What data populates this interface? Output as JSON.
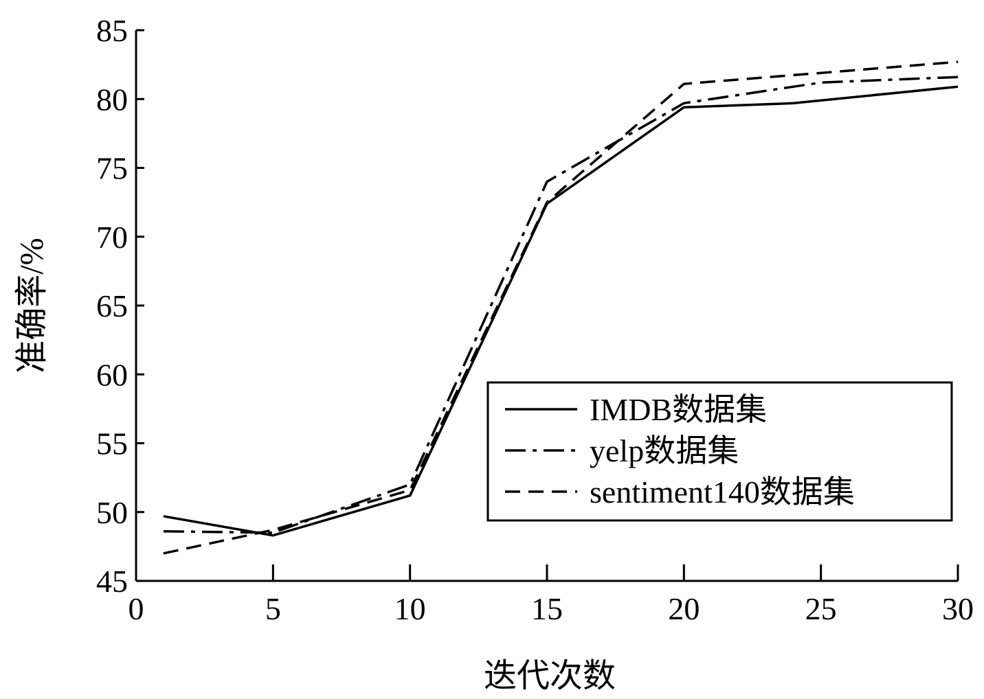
{
  "chart_data": {
    "type": "line",
    "title": "",
    "xlabel": "迭代次数",
    "ylabel": "准确率/%",
    "xlim": [
      0,
      30
    ],
    "ylim": [
      45,
      85
    ],
    "xticks": [
      0,
      5,
      10,
      15,
      20,
      25,
      30
    ],
    "yticks": [
      45,
      50,
      55,
      60,
      65,
      70,
      75,
      80,
      85
    ],
    "grid": false,
    "legend_position": "bottom-right",
    "series": [
      {
        "name": "IMDB数据集",
        "style": "solid",
        "color": "#000000",
        "x": [
          1,
          5,
          10,
          15,
          20,
          24,
          30
        ],
        "y": [
          49.7,
          48.3,
          51.2,
          72.4,
          79.4,
          79.7,
          80.9
        ]
      },
      {
        "name": "yelp数据集",
        "style": "dashdot",
        "color": "#000000",
        "x": [
          1,
          5,
          10,
          15,
          20,
          25,
          30
        ],
        "y": [
          48.6,
          48.5,
          52.0,
          74.0,
          79.7,
          81.2,
          81.6
        ]
      },
      {
        "name": "sentiment140数据集",
        "style": "dashed",
        "color": "#000000",
        "x": [
          1,
          5,
          10,
          15,
          20,
          25,
          30
        ],
        "y": [
          47.0,
          48.7,
          51.6,
          72.5,
          81.1,
          81.9,
          82.7
        ]
      }
    ]
  }
}
